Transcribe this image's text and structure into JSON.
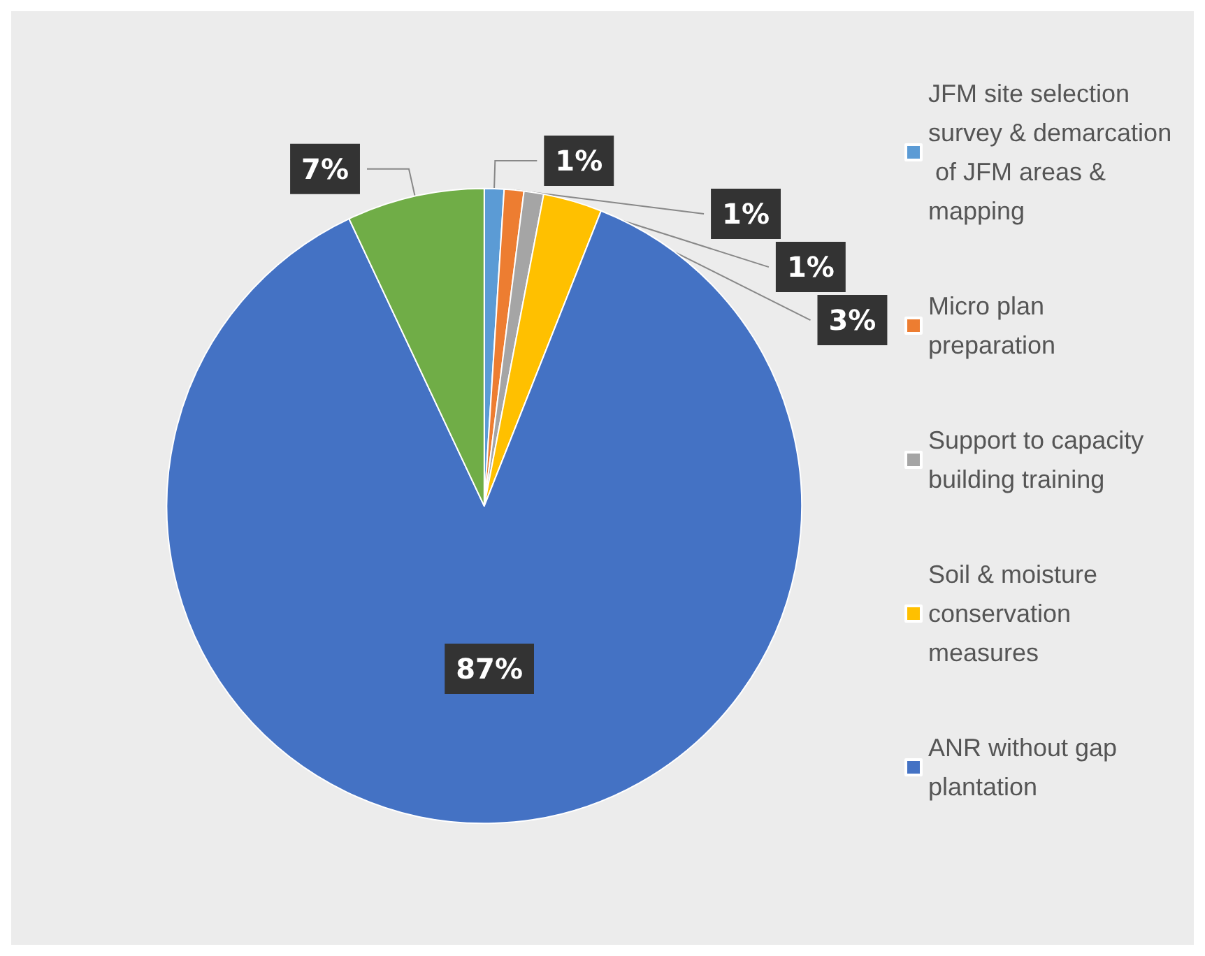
{
  "chart_data": {
    "type": "pie",
    "categories": [
      "JFM site selection survey & demarcation of JFM areas & mapping",
      "Micro plan preparation",
      "Support to capacity building training",
      "Soil & moisture conservation measures",
      "ANR without gap plantation",
      null
    ],
    "values": [
      1,
      1,
      1,
      3,
      87,
      7
    ],
    "colors": [
      "#5b9bd5",
      "#ed7d31",
      "#a5a5a5",
      "#ffc000",
      "#4472c4",
      "#70ad47"
    ],
    "value_labels": [
      "1%",
      "1%",
      "1%",
      "3%",
      "87%",
      "7%"
    ],
    "legend": "right"
  }
}
